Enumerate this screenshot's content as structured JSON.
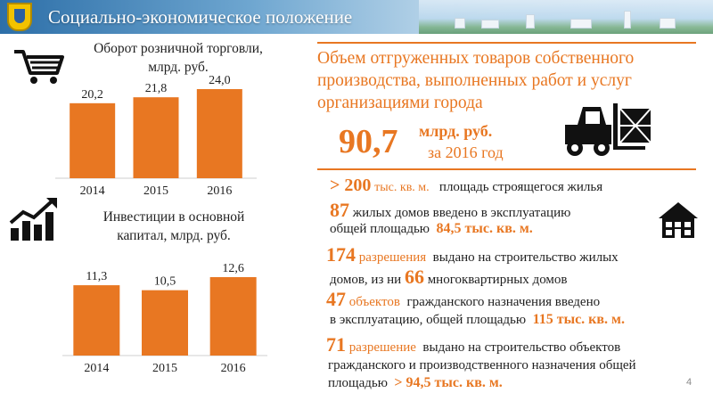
{
  "header": {
    "title": "Социально-экономическое положение",
    "colors": {
      "accent": "#e87722",
      "header_blue": "#2d6fa8"
    }
  },
  "chart_data": [
    {
      "type": "bar",
      "title": "Оборот розничной торговли, млрд. руб.",
      "categories": [
        "2014",
        "2015",
        "2016"
      ],
      "values": [
        20.2,
        21.8,
        24.0
      ],
      "value_labels": [
        "20,2",
        "21,8",
        "24,0"
      ],
      "color": "#e87722",
      "ylim": [
        0,
        24.0
      ],
      "grid": false,
      "icon": "shopping-cart-icon"
    },
    {
      "type": "bar",
      "title": "Инвестиции в основной капитал, млрд. руб.",
      "categories": [
        "2014",
        "2015",
        "2016"
      ],
      "values": [
        11.3,
        10.5,
        12.6
      ],
      "value_labels": [
        "11,3",
        "10,5",
        "12,6"
      ],
      "color": "#e87722",
      "ylim": [
        0,
        12.6
      ],
      "grid": false,
      "icon": "growth-chart-icon"
    }
  ],
  "retail": {
    "title_line1": "Оборот розничной торговли,",
    "title_line2": "млрд. руб."
  },
  "investment": {
    "title_line1": "Инвестиции в основной",
    "title_line2": "капитал, млрд. руб."
  },
  "shipments": {
    "line1": "Объем отгруженных товаров собственного",
    "line2": "производства, выполненных работ и услуг",
    "line3": "организациями города",
    "value": "90,7",
    "unit": "млрд. руб.",
    "period": "за 2016 год",
    "icon": "forklift-icon"
  },
  "construction": {
    "house_icon": "house-icon",
    "l1_num": "> 200",
    "l1_unit": "тыс. кв. м.",
    "l1_text": "площадь строящегося жилья",
    "l2_num": "87",
    "l2_text": "жилых домов введено в эксплуатацию",
    "l3_text": "общей площадью",
    "l3_value": "84,5 тыс. кв. м.",
    "l4_num": "174",
    "l4_word": "разрешения",
    "l4_text": "выдано на строительство жилых",
    "l5_text": "домов, из ни",
    "l5_num": "66",
    "l5_text2": "многоквартирных домов",
    "l6_num": "47",
    "l6_word": "объектов",
    "l6_text": "гражданского назначения введено",
    "l7_text": "в эксплуатацию, общей площадью",
    "l7_value": "115 тыс. кв. м.",
    "l8_num": "71",
    "l8_word": "разрешение",
    "l8_text": "выдано на строительство объектов",
    "l9_text": "гражданского и производственного назначения общей",
    "l10_text": "площадью",
    "l10_value": "> 94,5 тыс. кв. м."
  },
  "page_number": "4"
}
